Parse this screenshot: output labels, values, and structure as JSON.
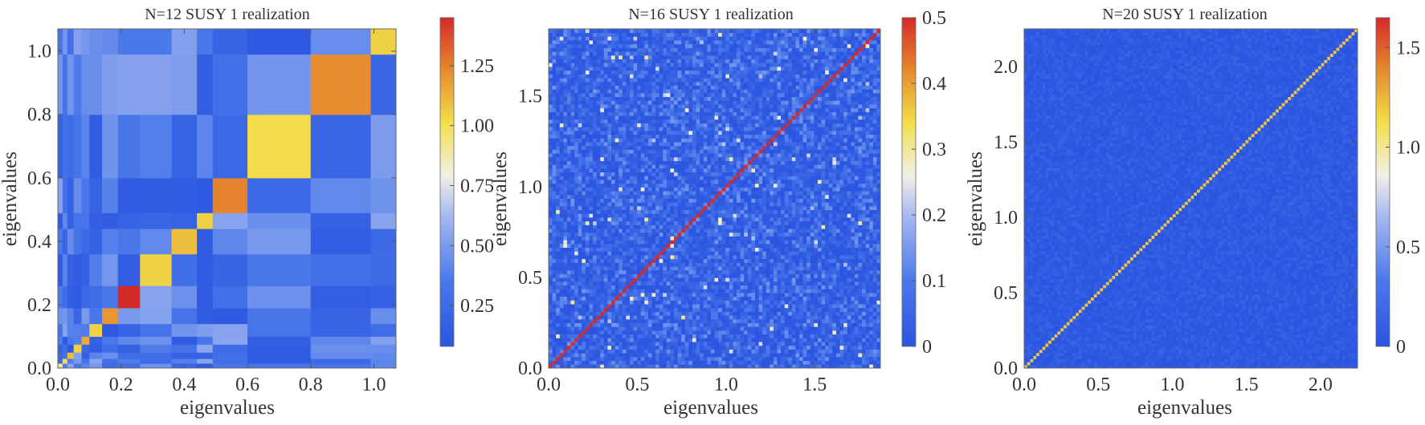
{
  "chart_data": [
    {
      "type": "heatmap",
      "title": "N=12 SUSY 1 realization",
      "xlabel": "eigenvalues",
      "ylabel": "eigenvalues",
      "xlim": [
        0,
        1.07
      ],
      "ylim": [
        0,
        1.07
      ],
      "x_ticks": [
        "0.0",
        "0.2",
        "0.4",
        "0.6",
        "0.8",
        "1.0"
      ],
      "x_tick_values": [
        0,
        0.2,
        0.4,
        0.6,
        0.8,
        1.0
      ],
      "y_ticks": [
        "0.0",
        "0.2",
        "0.4",
        "0.6",
        "0.8",
        "1.0"
      ],
      "y_tick_values": [
        0,
        0.2,
        0.4,
        0.6,
        0.8,
        1.0
      ],
      "colorbar": {
        "min": 0.08,
        "max": 1.45,
        "ticks": [
          "0.25",
          "0.50",
          "0.75",
          "1.00",
          "1.25"
        ],
        "tick_values": [
          0.25,
          0.5,
          0.75,
          1.0,
          1.25
        ]
      },
      "diagonal_blocks": [
        {
          "lo": 0.0,
          "hi": 0.015,
          "value": 0.9
        },
        {
          "lo": 0.015,
          "hi": 0.03,
          "value": 1.0
        },
        {
          "lo": 0.03,
          "hi": 0.05,
          "value": 1.1
        },
        {
          "lo": 0.05,
          "hi": 0.075,
          "value": 1.05
        },
        {
          "lo": 0.075,
          "hi": 0.1,
          "value": 1.15
        },
        {
          "lo": 0.1,
          "hi": 0.14,
          "value": 1.05
        },
        {
          "lo": 0.14,
          "hi": 0.19,
          "value": 1.2
        },
        {
          "lo": 0.19,
          "hi": 0.26,
          "value": 1.45
        },
        {
          "lo": 0.26,
          "hi": 0.36,
          "value": 1.05
        },
        {
          "lo": 0.36,
          "hi": 0.44,
          "value": 1.1
        },
        {
          "lo": 0.44,
          "hi": 0.49,
          "value": 1.05
        },
        {
          "lo": 0.49,
          "hi": 0.6,
          "value": 1.25
        },
        {
          "lo": 0.6,
          "hi": 0.8,
          "value": 1.02
        },
        {
          "lo": 0.8,
          "hi": 0.99,
          "value": 1.22
        },
        {
          "lo": 0.99,
          "hi": 1.07,
          "value": 1.05
        }
      ],
      "background_range": [
        0.1,
        0.55
      ]
    },
    {
      "type": "heatmap",
      "title": "N=16 SUSY 1 realization",
      "xlabel": "eigenvalues",
      "ylabel": "eigenvalues",
      "xlim": [
        0,
        1.87
      ],
      "ylim": [
        0,
        1.87
      ],
      "x_ticks": [
        "0.0",
        "0.5",
        "1.0",
        "1.5"
      ],
      "x_tick_values": [
        0,
        0.5,
        1.0,
        1.5
      ],
      "y_ticks": [
        "0.0",
        "0.5",
        "1.0",
        "1.5"
      ],
      "y_tick_values": [
        0,
        0.5,
        1.0,
        1.5
      ],
      "colorbar": {
        "min": 0,
        "max": 0.5,
        "ticks": [
          "0",
          "0.1",
          "0.2",
          "0.3",
          "0.4",
          "0.5"
        ],
        "tick_values": [
          0,
          0.1,
          0.2,
          0.3,
          0.4,
          0.5
        ]
      },
      "diagonal_value": 0.5,
      "background_range": [
        0.0,
        0.15
      ]
    },
    {
      "type": "heatmap",
      "title": "N=20 SUSY 1 realization",
      "xlabel": "eigenvalues",
      "ylabel": "eigenvalues",
      "xlim": [
        0,
        2.25
      ],
      "ylim": [
        0,
        2.25
      ],
      "x_ticks": [
        "0.0",
        "0.5",
        "1.0",
        "1.5",
        "2.0"
      ],
      "x_tick_values": [
        0,
        0.5,
        1.0,
        1.5,
        2.0
      ],
      "y_ticks": [
        "0.0",
        "0.5",
        "1.0",
        "1.5",
        "2.0"
      ],
      "y_tick_values": [
        0,
        0.5,
        1.0,
        1.5,
        2.0
      ],
      "colorbar": {
        "min": 0,
        "max": 1.65,
        "ticks": [
          "0",
          "0.5",
          "1.0",
          "1.5"
        ],
        "tick_values": [
          0,
          0.5,
          1.0,
          1.5
        ]
      },
      "diagonal_value": 1.2,
      "background_range": [
        0.0,
        0.15
      ]
    }
  ]
}
